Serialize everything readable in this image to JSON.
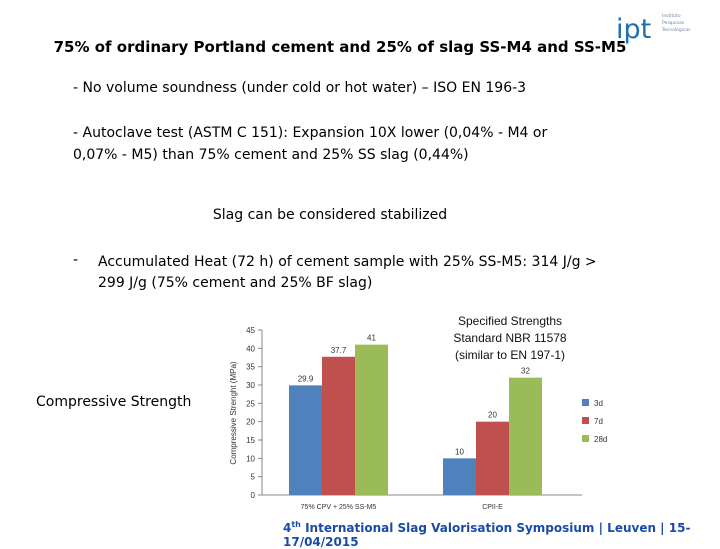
{
  "title": "75% of ordinary Portland cement and 25% of slag SS-M4 and SS-M5",
  "logo": {
    "text": "ipt",
    "lines": [
      "Instituto",
      "Pesquisas",
      "Tecnológicas"
    ]
  },
  "bullets": {
    "soundness": "- No volume soundness (under cold or hot water) – ISO EN 196-3",
    "autoclave": "- Autoclave test (ASTM C 151): Expansion 10X lower (0,04% - M4 or 0,07% - M5) than 75% cement and 25% SS slag (0,44%)",
    "stabilized": "Slag can be considered stabilized",
    "heat_dash": "-",
    "heat": "Accumulated Heat (72 h) of cement sample with 25% SS-M5: 314 J/g > 299 J/g (75% cement and 25% BF slag)"
  },
  "side_label": "Compressive Strength",
  "footer": {
    "pre": "4",
    "sup": "th",
    "post": " International Slag Valorisation Symposium  |  Leuven  |  15-17/04/2015"
  },
  "chart_data": {
    "type": "bar",
    "categories": [
      "75% CPV + 25% SS-M5",
      "CPII-E"
    ],
    "series": [
      {
        "name": "3d",
        "color": "#4f81bd",
        "values": [
          29.9,
          10
        ]
      },
      {
        "name": "7d",
        "color": "#c0504d",
        "values": [
          37.7,
          20
        ]
      },
      {
        "name": "28d",
        "color": "#9bbb59",
        "values": [
          41,
          32
        ]
      }
    ],
    "ylabel": "Compressive Strenght  (MPa)",
    "ylim": [
      0,
      45
    ],
    "yticks": [
      0,
      5,
      10,
      15,
      20,
      25,
      30,
      35,
      40,
      45
    ],
    "annotation": [
      "Specified Strengths",
      "Standard NBR 11578",
      "(similar to EN 197-1)"
    ],
    "legend_position": "right"
  }
}
